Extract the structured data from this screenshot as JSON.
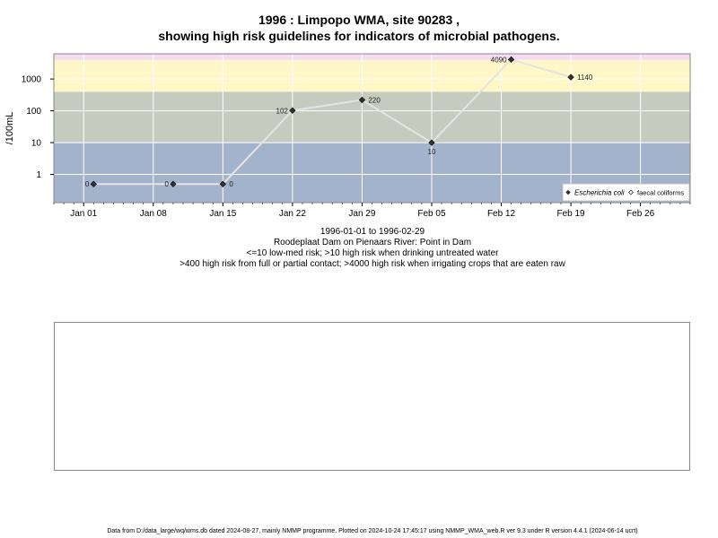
{
  "title": {
    "line1": "1996 : Limpopo WMA, site 90283 ,",
    "line2": "showing high risk guidelines for indicators of microbial pathogens."
  },
  "subtitle": {
    "date_range": "1996-01-01 to 1996-02-29",
    "site": "Roodeplaat Dam on Pienaars River: Point in Dam",
    "guideline1": "<=10 low-med risk; >10 high risk when drinking untreated water",
    "guideline2": ">400 high risk from full or partial contact; >4000 high risk when irrigating crops that are eaten raw"
  },
  "footer": "Data from D:/data_large/wq/wms.db dated 2024-08-27, mainly NMMP programme. Plotted on 2024-10-24 17:45:17 using NMMP_WMA_web.R ver 9.3 under R version 4.4.1 (2024-06-14 ucrt)",
  "chart_data": {
    "type": "line",
    "title": "1996 : Limpopo WMA, site 90283 , showing high risk guidelines for indicators of microbial pathogens.",
    "ylabel": "/100mL",
    "xlabel": "",
    "y_scale": "log10",
    "ylim": [
      0.13,
      6200
    ],
    "xlim": [
      "1995-12-29",
      "1996-03-02"
    ],
    "x_ticks": [
      {
        "date": "1996-01-01",
        "label": "Jan 01"
      },
      {
        "date": "1996-01-08",
        "label": "Jan 08"
      },
      {
        "date": "1996-01-15",
        "label": "Jan 15"
      },
      {
        "date": "1996-01-22",
        "label": "Jan 22"
      },
      {
        "date": "1996-01-29",
        "label": "Jan 29"
      },
      {
        "date": "1996-02-05",
        "label": "Feb 05"
      },
      {
        "date": "1996-02-12",
        "label": "Feb 12"
      },
      {
        "date": "1996-02-19",
        "label": "Feb 19"
      },
      {
        "date": "1996-02-26",
        "label": "Feb 26"
      }
    ],
    "y_ticks": [
      {
        "value": 1,
        "label": "1"
      },
      {
        "value": 10,
        "label": "10"
      },
      {
        "value": 100,
        "label": "100"
      },
      {
        "value": 1000,
        "label": "1000"
      }
    ],
    "bands": [
      {
        "from": 0.13,
        "to": 10,
        "color": "#a3b3cc"
      },
      {
        "from": 10,
        "to": 400,
        "color": "#c5ccbf"
      },
      {
        "from": 400,
        "to": 4000,
        "color": "#fff7c8"
      },
      {
        "from": 4000,
        "to": 6200,
        "color": "#f6dcf2"
      }
    ],
    "grid": true,
    "legend_position": "bottom-right",
    "legend": [
      {
        "name": "Escherichia coli",
        "marker": "filled-diamond",
        "italic": true
      },
      {
        "name": "faecal coliforms",
        "marker": "open-diamond",
        "italic": false
      }
    ],
    "series": [
      {
        "name": "Escherichia coli",
        "line_color": "#e4e4e4",
        "marker_color": "#333333",
        "points": [
          {
            "x": "1996-01-02",
            "y": 0.5,
            "label": "0",
            "label_side": "left"
          },
          {
            "x": "1996-01-10",
            "y": 0.5,
            "label": "0",
            "label_side": "left"
          },
          {
            "x": "1996-01-15",
            "y": 0.5,
            "label": "0",
            "label_side": "right"
          },
          {
            "x": "1996-01-22",
            "y": 102,
            "label": "102",
            "label_side": "left"
          },
          {
            "x": "1996-01-29",
            "y": 220,
            "label": "220",
            "label_side": "right"
          },
          {
            "x": "1996-02-05",
            "y": 10,
            "label": "10",
            "label_side": "below"
          },
          {
            "x": "1996-02-13",
            "y": 4090,
            "label": "4090",
            "label_side": "left"
          },
          {
            "x": "1996-02-19",
            "y": 1140,
            "label": "1140",
            "label_side": "right"
          }
        ]
      }
    ]
  }
}
